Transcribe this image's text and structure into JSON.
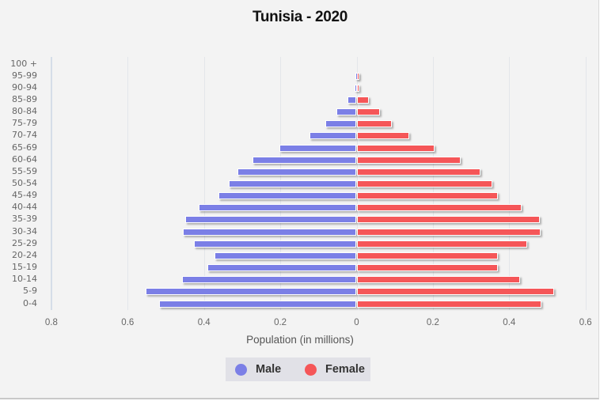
{
  "chart_data": {
    "type": "bar",
    "orientation": "horizontal-population-pyramid",
    "title": "Tunisia - 2020",
    "xlabel": "Population (in millions)",
    "ylabel": "",
    "x_ticks": [
      "0.8",
      "0.6",
      "0.4",
      "0.2",
      "0",
      "0.2",
      "0.4",
      "0.6"
    ],
    "xlim": [
      -0.8,
      0.6
    ],
    "grid": true,
    "legend_position": "bottom",
    "categories": [
      "100 +",
      "95-99",
      "90-94",
      "85-89",
      "80-84",
      "75-79",
      "70-74",
      "65-69",
      "60-64",
      "55-59",
      "50-54",
      "45-49",
      "40-44",
      "35-39",
      "30-34",
      "25-29",
      "20-24",
      "15-19",
      "10-14",
      "5-9",
      "0-4"
    ],
    "series": [
      {
        "name": "Male",
        "color": "#7b7fe6",
        "values": [
          0.0,
          0.001,
          0.004,
          0.021,
          0.05,
          0.079,
          0.122,
          0.201,
          0.27,
          0.311,
          0.332,
          0.359,
          0.411,
          0.448,
          0.454,
          0.425,
          0.371,
          0.39,
          0.456,
          0.55,
          0.515
        ]
      },
      {
        "name": "Female",
        "color": "#f55658",
        "values": [
          0.0,
          0.001,
          0.006,
          0.031,
          0.06,
          0.091,
          0.135,
          0.203,
          0.27,
          0.322,
          0.353,
          0.369,
          0.43,
          0.479,
          0.481,
          0.446,
          0.369,
          0.369,
          0.427,
          0.515,
          0.483
        ]
      }
    ]
  },
  "legend": {
    "items": [
      {
        "label": "Male",
        "color": "#7b7fe6"
      },
      {
        "label": "Female",
        "color": "#f55658"
      }
    ]
  }
}
